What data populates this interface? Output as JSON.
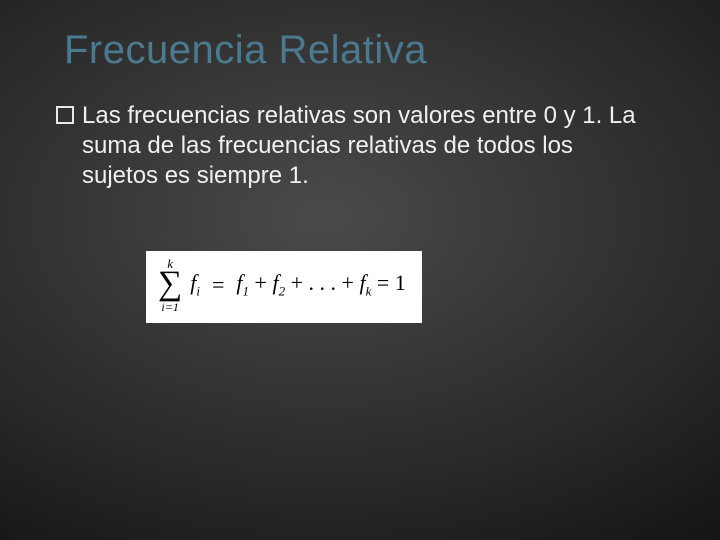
{
  "slide": {
    "background": {
      "type": "radial-gradient",
      "center_color": "#4a4a4a",
      "edge_color": "#0a0a0a"
    },
    "title": {
      "text": "Frecuencia Relativa",
      "color": "#4b7a8f",
      "font_size_pt": 30,
      "font_weight": "normal"
    },
    "bullet": {
      "marker": "hollow-square",
      "marker_border_color": "#e8e8e8",
      "text": "Las frecuencias relativas son valores entre 0 y 1. La suma de las frecuencias relativas de todos los sujetos es siempre 1.",
      "text_color": "#f0f0f0",
      "font_size_pt": 18
    },
    "formula": {
      "box_background": "#ffffff",
      "font_family": "Times New Roman",
      "text_color": "#000000",
      "sum_upper": "k",
      "sum_lower": "i=1",
      "sum_term": "f",
      "sum_term_sub": "i",
      "rhs_terms": [
        "f₁",
        "f₂",
        "…",
        "f_k"
      ],
      "rhs_f": "f",
      "rhs_sub1": "1",
      "rhs_sub2": "2",
      "rhs_subk": "k",
      "plus": "+",
      "dots": ". . .",
      "equals": "=",
      "result": "1"
    }
  }
}
